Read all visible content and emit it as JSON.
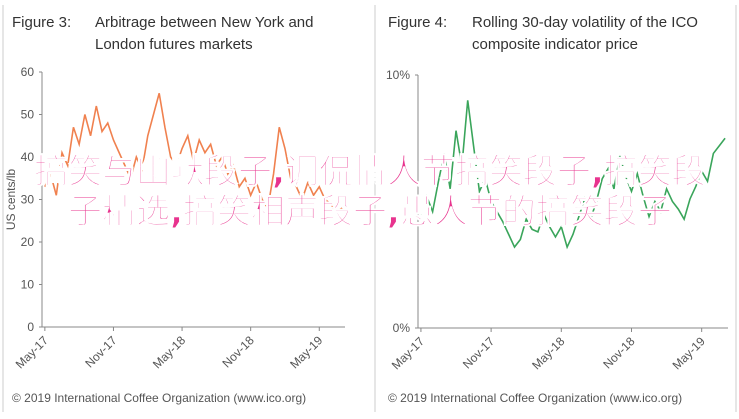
{
  "chart_data": [
    {
      "type": "line",
      "label": "Figure 3:",
      "title": "Arbitrage between New York and London futures markets",
      "y_label": "US cents/lb",
      "categories": [
        "May-17",
        null,
        null,
        null,
        null,
        null,
        null,
        null,
        null,
        null,
        null,
        null,
        "Nov-17",
        null,
        null,
        null,
        null,
        null,
        null,
        null,
        null,
        null,
        null,
        null,
        "May-18",
        null,
        null,
        null,
        null,
        null,
        null,
        null,
        null,
        null,
        null,
        null,
        "Nov-18",
        null,
        null,
        null,
        null,
        null,
        null,
        null,
        null,
        null,
        null,
        null,
        "May-19",
        null,
        null,
        null,
        null
      ],
      "series": [
        {
          "color": "#f0814f",
          "values": [
            33,
            36,
            31,
            41,
            38,
            47,
            43,
            50,
            45,
            52,
            46,
            48,
            44,
            41,
            38,
            35,
            40,
            37,
            45,
            50,
            55,
            47,
            40,
            38,
            42,
            45,
            39,
            44,
            41,
            43,
            38,
            40,
            36,
            38,
            33,
            35,
            31,
            34,
            30,
            28,
            36,
            47,
            42,
            35,
            33,
            30,
            34,
            31,
            33,
            30,
            29,
            27,
            28
          ]
        }
      ],
      "ylim": [
        0,
        60
      ],
      "yticks": [
        0,
        10,
        20,
        30,
        40,
        50,
        60
      ],
      "source": "© 2019 International Coffee Organization (www.ico.org)"
    },
    {
      "type": "line",
      "label": "Figure 4:",
      "title": "Rolling 30-day volatility of the ICO composite indicator price",
      "categories": [
        "May-17",
        null,
        null,
        null,
        null,
        null,
        null,
        null,
        null,
        null,
        null,
        null,
        "Nov-17",
        null,
        null,
        null,
        null,
        null,
        null,
        null,
        null,
        null,
        null,
        null,
        "May-18",
        null,
        null,
        null,
        null,
        null,
        null,
        null,
        null,
        null,
        null,
        null,
        "Nov-18",
        null,
        null,
        null,
        null,
        null,
        null,
        null,
        null,
        null,
        null,
        null,
        "May-19",
        null,
        null,
        null,
        null
      ],
      "series": [
        {
          "color": "#3aa55b",
          "values": [
            4.5,
            5.2,
            4.6,
            5.8,
            6.9,
            5.5,
            7.8,
            6.4,
            9.0,
            7.2,
            5.4,
            5.9,
            5.0,
            4.6,
            4.2,
            3.7,
            3.2,
            3.5,
            4.3,
            3.9,
            3.8,
            4.5,
            4.0,
            3.6,
            4.0,
            3.2,
            3.7,
            4.4,
            5.1,
            4.3,
            5.0,
            5.9,
            6.3,
            5.5,
            6.8,
            6.0,
            5.4,
            6.1,
            5.2,
            4.4,
            5.0,
            4.6,
            5.5,
            5.0,
            4.7,
            4.3,
            5.1,
            5.6,
            6.2,
            5.8,
            6.9,
            7.2,
            7.5
          ]
        }
      ],
      "ylim": [
        0,
        10
      ],
      "yticks": [
        {
          "value": 0,
          "label": "0%"
        },
        {
          "value": 10,
          "label": "10%"
        }
      ],
      "source": "© 2019 International Coffee Organization (www.ico.org)"
    }
  ],
  "overlay_text": "搞笑与幽默段子,调侃情人节搞笑段子,搞笑段子精选,搞笑相声段子,愚人节的搞笑段子"
}
